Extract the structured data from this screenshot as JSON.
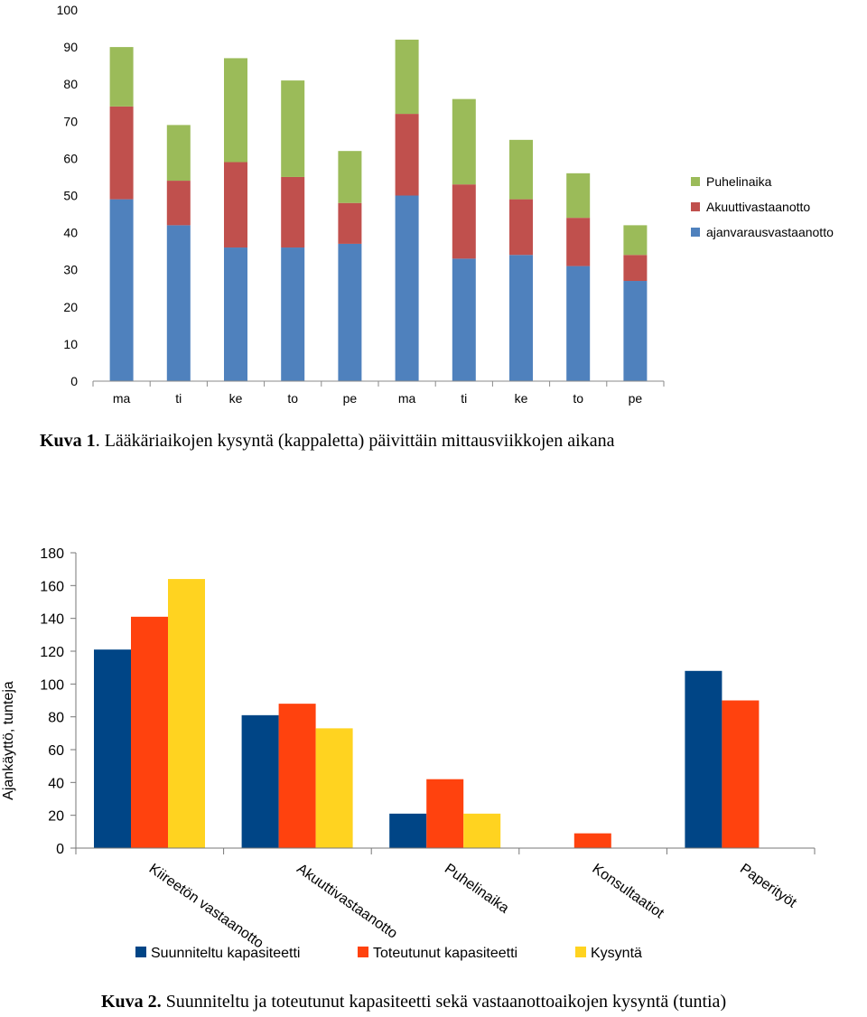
{
  "chart_data": [
    {
      "type": "bar",
      "stacked": true,
      "categories": [
        "ma",
        "ti",
        "ke",
        "to",
        "pe",
        "ma",
        "ti",
        "ke",
        "to",
        "pe"
      ],
      "series": [
        {
          "name": "ajanvarausvastaanotto",
          "color": "#4f81bd",
          "values": [
            49,
            42,
            36,
            36,
            37,
            50,
            33,
            34,
            31,
            27
          ]
        },
        {
          "name": "Akuuttivastaanotto",
          "color": "#c0504d",
          "values": [
            25,
            12,
            23,
            19,
            11,
            22,
            20,
            15,
            13,
            7
          ]
        },
        {
          "name": "Puhelinaika",
          "color": "#9bbb59",
          "values": [
            16,
            15,
            28,
            26,
            14,
            20,
            23,
            16,
            12,
            8
          ]
        }
      ],
      "legend_order": [
        "Puhelinaika",
        "Akuuttivastaanotto",
        "ajanvarausvastaanotto"
      ],
      "yticks": [
        "0",
        "10",
        "20",
        "30",
        "40",
        "50",
        "60",
        "70",
        "80",
        "90",
        "100"
      ],
      "ylim": [
        0,
        100
      ],
      "legend_position": "right"
    },
    {
      "type": "bar",
      "stacked": false,
      "categories": [
        "Kiireetön vastaanotto",
        "Akuuttivastaanotto",
        "Puhelinaika",
        "Konsultaatiot",
        "Paperityöt"
      ],
      "series": [
        {
          "name": "Suunniteltu kapasiteetti",
          "color": "#004586",
          "values": [
            121,
            81,
            21,
            null,
            108
          ]
        },
        {
          "name": "Toteutunut kapasiteetti",
          "color": "#ff420e",
          "values": [
            141,
            88,
            42,
            9,
            90
          ]
        },
        {
          "name": "Kysyntä",
          "color": "#ffd320",
          "values": [
            164,
            73,
            21,
            null,
            null
          ]
        }
      ],
      "ylabel": "Ajankäyttö, tunteja",
      "yticks": [
        "0",
        "20",
        "40",
        "60",
        "80",
        "100",
        "120",
        "140",
        "160",
        "180"
      ],
      "ylim": [
        0,
        180
      ],
      "legend_position": "bottom"
    }
  ],
  "captions": {
    "c1_label": "Kuva 1",
    "c1_text": ". Lääkäriaikojen kysyntä (kappaletta) päivittäin mittausviikkojen aikana",
    "c2_label": "Kuva 2.",
    "c2_text": " Suunniteltu ja toteutunut kapasiteetti sekä vastaanottoaikojen kysyntä (tuntia)"
  }
}
